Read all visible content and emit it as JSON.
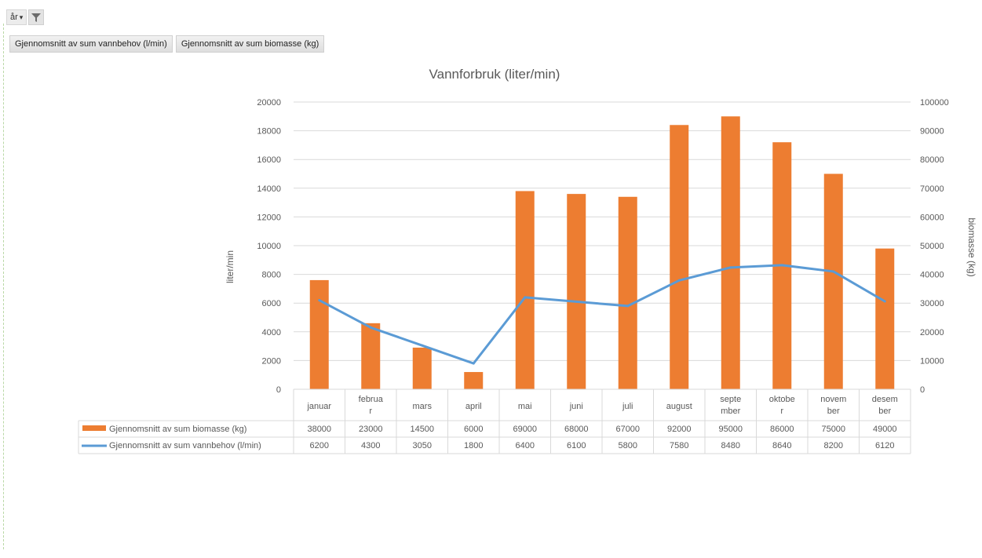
{
  "field_buttons": {
    "year": "år",
    "filter_icon": "filter-icon",
    "dropdown_icon": "dropdown-arrow-icon"
  },
  "value_buttons": [
    "Gjennomsnitt av sum vannbehov (l/min)",
    "Gjennomsnitt av sum biomasse (kg)"
  ],
  "colors": {
    "bar": "#ED7D31",
    "line": "#5B9BD5",
    "grid": "#D9D9D9",
    "text": "#595959"
  },
  "chart_data": {
    "type": "bar",
    "title": "Vannforbruk (liter/min)",
    "ylabel": "liter/min",
    "y2label": "biomasse (kg)",
    "ylim": [
      0,
      20000
    ],
    "y2lim": [
      0,
      100000
    ],
    "yticks": [
      "0",
      "2000",
      "4000",
      "6000",
      "8000",
      "10000",
      "12000",
      "14000",
      "16000",
      "18000",
      "20000"
    ],
    "y2ticks": [
      "0",
      "10000",
      "20000",
      "30000",
      "40000",
      "50000",
      "60000",
      "70000",
      "80000",
      "90000",
      "100000"
    ],
    "categories": [
      [
        "januar"
      ],
      [
        "februa",
        "r"
      ],
      [
        "mars"
      ],
      [
        "april"
      ],
      [
        "mai"
      ],
      [
        "juni"
      ],
      [
        "juli"
      ],
      [
        "august"
      ],
      [
        "septe",
        "mber"
      ],
      [
        "oktobe",
        "r"
      ],
      [
        "novem",
        "ber"
      ],
      [
        "desem",
        "ber"
      ]
    ],
    "series": [
      {
        "name": "Gjennomsnitt av sum biomasse (kg)",
        "kind": "bar",
        "axis": "secondary",
        "values": [
          38000,
          23000,
          14500,
          6000,
          69000,
          68000,
          67000,
          92000,
          95000,
          86000,
          75000,
          49000
        ],
        "labels": [
          "38000",
          "23000",
          "14500",
          "6000",
          "69000",
          "68000",
          "67000",
          "92000",
          "95000",
          "86000",
          "75000",
          "49000"
        ]
      },
      {
        "name": "Gjennomsnitt av sum vannbehov (l/min)",
        "kind": "line",
        "axis": "primary",
        "values": [
          6200,
          4300,
          3050,
          1800,
          6400,
          6100,
          5800,
          7580,
          8480,
          8640,
          8200,
          6120
        ],
        "labels": [
          "6200",
          "4300",
          "3050",
          "1800",
          "6400",
          "6100",
          "5800",
          "7580",
          "8480",
          "8640",
          "8200",
          "6120"
        ]
      }
    ],
    "grid": true,
    "legend": "data-table"
  }
}
